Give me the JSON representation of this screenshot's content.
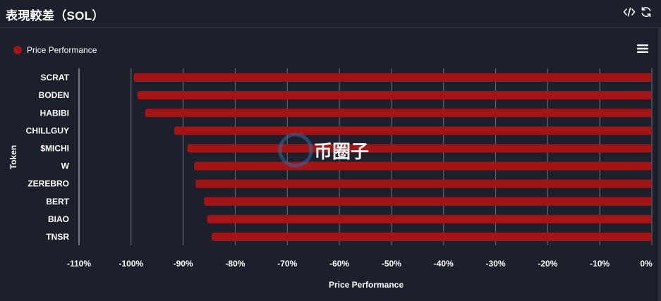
{
  "header": {
    "title": "表現較差（SOL）",
    "icons": [
      "code-icon",
      "refresh-icon"
    ]
  },
  "legend": {
    "label": "Price Performance",
    "color": "#a31515"
  },
  "menu": {
    "icon": "hamburger-menu-icon"
  },
  "watermark": {
    "text": "币圈子"
  },
  "colors": {
    "background": "#1b202b",
    "bar": "#a31515",
    "grid": "#6b707a",
    "text": "#ffffff"
  },
  "chart_data": {
    "type": "bar",
    "orientation": "horizontal",
    "categories": [
      "SCRAT",
      "BODEN",
      "HABIBI",
      "CHILLGUY",
      "$MICHI",
      "W",
      "ZEREBRO",
      "BERT",
      "BIAO",
      "TNSR"
    ],
    "series": [
      {
        "name": "Price Performance",
        "values": [
          -99.5,
          -98.8,
          -97.3,
          -91.7,
          -89.2,
          -87.9,
          -87.6,
          -86.0,
          -85.4,
          -84.5
        ]
      }
    ],
    "xlabel": "Price Performance",
    "ylabel": "Token",
    "xlim": [
      -110,
      0
    ],
    "xticks": [
      "-110%",
      "-100%",
      "-90%",
      "-80%",
      "-70%",
      "-60%",
      "-50%",
      "-40%",
      "-30%",
      "-20%",
      "-10%",
      "0%"
    ],
    "grid": true,
    "legend_position": "top-left"
  }
}
